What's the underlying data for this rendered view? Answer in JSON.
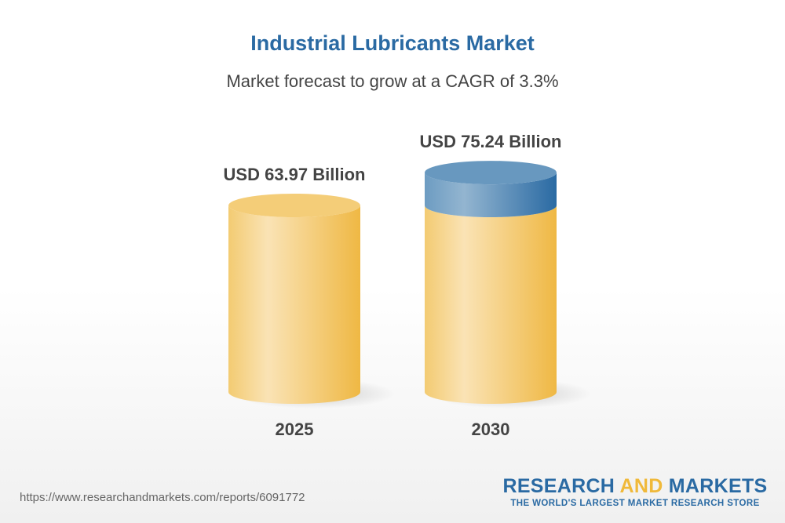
{
  "chart_data": {
    "type": "bar",
    "style": "3d-cylinder",
    "title": "Industrial Lubricants Market",
    "subtitle": "Market forecast to grow at a CAGR of 3.3%",
    "categories": [
      "2025",
      "2030"
    ],
    "values": [
      63.97,
      75.24
    ],
    "data_labels": [
      "USD 63.97 Billion",
      "USD 75.24 Billion"
    ],
    "unit": "USD Billion",
    "grid": false,
    "colors": {
      "base": "#f2c25a",
      "growth": "#2a6aa3"
    }
  },
  "footer": {
    "url": "https://www.researchandmarkets.com/reports/6091772",
    "logo_part1": "RESEARCH ",
    "logo_part2": "AND",
    "logo_part3": " MARKETS",
    "tagline": "THE WORLD'S LARGEST MARKET RESEARCH STORE"
  }
}
